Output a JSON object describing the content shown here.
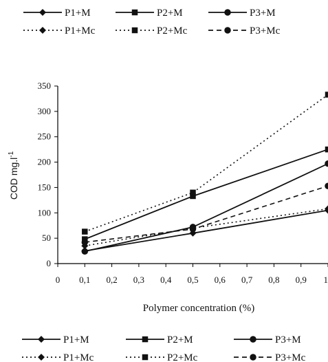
{
  "chart_data": {
    "type": "line",
    "title": "",
    "xlabel": "Polymer concentration (%)",
    "ylabel": "COD mg.l",
    "ylabel_superscript": "-1",
    "xlim": [
      0,
      1.0
    ],
    "ylim": [
      0,
      350
    ],
    "x_ticks": [
      "0",
      "0,1",
      "0,2",
      "0,3",
      "0,4",
      "0,5",
      "0,6",
      "0,7",
      "0,8",
      "0,9",
      "1"
    ],
    "y_ticks": [
      "0",
      "50",
      "100",
      "150",
      "200",
      "250",
      "300",
      "350"
    ],
    "grid": false,
    "legend_position": "top and bottom",
    "series": [
      {
        "name": "P1+M",
        "line": "solid",
        "marker": "diamond",
        "x": [
          0.1,
          0.5,
          1.0
        ],
        "y": [
          25,
          60,
          105
        ]
      },
      {
        "name": "P2+M",
        "line": "solid",
        "marker": "square",
        "x": [
          0.1,
          0.5,
          1.0
        ],
        "y": [
          48,
          133,
          225
        ]
      },
      {
        "name": "P3+M",
        "line": "solid",
        "marker": "circle",
        "x": [
          0.1,
          0.5,
          1.0
        ],
        "y": [
          24,
          72,
          197
        ]
      },
      {
        "name": "P1+Mc",
        "line": "dotted",
        "marker": "diamond",
        "x": [
          0.1,
          0.5,
          1.0
        ],
        "y": [
          35,
          70,
          108
        ]
      },
      {
        "name": "P2+Mc",
        "line": "dotted",
        "marker": "square",
        "x": [
          0.1,
          0.5,
          1.0
        ],
        "y": [
          63,
          140,
          333
        ]
      },
      {
        "name": "P3+Mc",
        "line": "dashed",
        "marker": "circle",
        "x": [
          0.1,
          0.5,
          1.0
        ],
        "y": [
          42,
          68,
          153
        ]
      }
    ]
  },
  "legend_top": [
    [
      "P1+M",
      "P2+M",
      "P3+M"
    ],
    [
      "P1+Mc",
      "P2+Mc",
      "P3+Mc"
    ]
  ],
  "legend_bottom": [
    [
      "P1+M",
      "P2+M",
      "P3+M"
    ],
    [
      "P1+Mc",
      "P2+Mc",
      "P3+Mc"
    ]
  ]
}
